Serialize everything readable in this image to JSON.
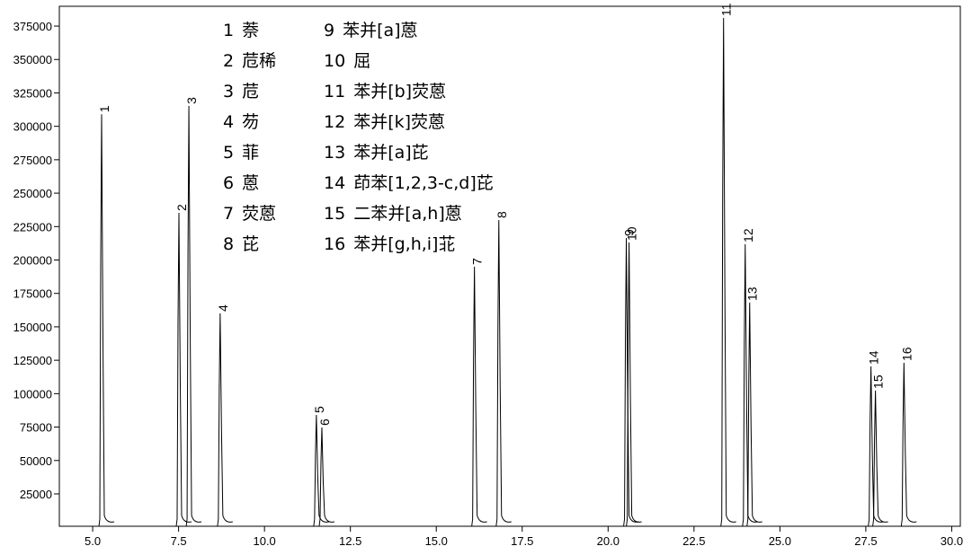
{
  "chart_data": {
    "type": "chromatogram",
    "x": [
      5.26,
      7.51,
      7.8,
      8.71,
      11.51,
      11.67,
      16.11,
      16.82,
      20.53,
      20.61,
      23.36,
      23.99,
      24.12,
      27.65,
      27.78,
      28.61
    ],
    "values": [
      309000,
      235300,
      315300,
      160000,
      84100,
      74700,
      195000,
      229900,
      216500,
      213100,
      381100,
      211800,
      168100,
      120400,
      102300,
      123100
    ],
    "labels": [
      "1",
      "2",
      "3",
      "4",
      "5",
      "6",
      "7",
      "8",
      "9",
      "10",
      "11",
      "12",
      "13",
      "14",
      "15",
      "16"
    ],
    "compounds": [
      "萘",
      "苊稀",
      "苊",
      "芴",
      "菲",
      "蒽",
      "荧蒽",
      "芘",
      "苯并[a]蒽",
      "屈",
      "苯并[b]荧蒽",
      "苯并[k]荧蒽",
      "苯并[a]芘",
      "茚苯[1,2,3-c,d]芘",
      "二苯并[a,h]蒽",
      "苯并[g,h,i]苝"
    ],
    "color": "#000000",
    "xlim": [
      4.03,
      30.25
    ],
    "ylim": [
      800,
      389800
    ],
    "xticks": [
      {
        "value": 5,
        "label": "5.0"
      },
      {
        "value": 7.5,
        "label": "7.5"
      },
      {
        "value": 10,
        "label": "10.0"
      },
      {
        "value": 12.5,
        "label": "12.5"
      },
      {
        "value": 15,
        "label": "15.0"
      },
      {
        "value": 17.5,
        "label": "17.5"
      },
      {
        "value": 20,
        "label": "20.0"
      },
      {
        "value": 22.5,
        "label": "22.5"
      },
      {
        "value": 25,
        "label": "25.0"
      },
      {
        "value": 27.5,
        "label": "27.5"
      },
      {
        "value": 30,
        "label": "30.0"
      }
    ],
    "yticks": [
      25000,
      50000,
      75000,
      100000,
      125000,
      150000,
      175000,
      200000,
      225000,
      250000,
      275000,
      300000,
      325000,
      350000,
      375000
    ]
  }
}
